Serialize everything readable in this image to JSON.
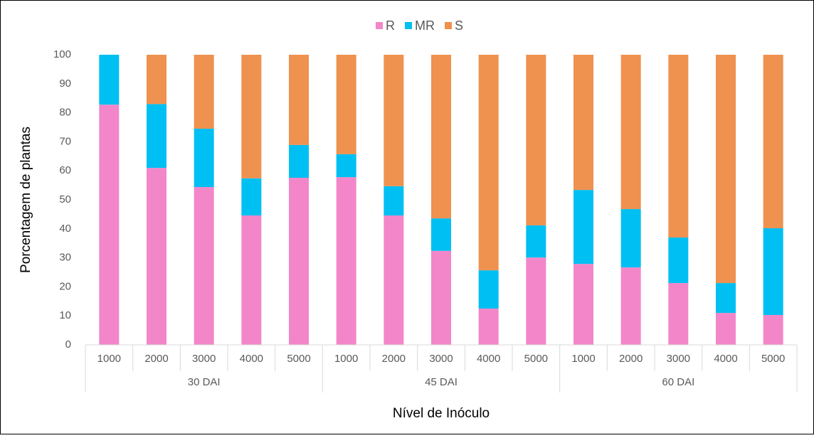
{
  "chart_data": {
    "type": "stacked_bar",
    "x_label": "Nível de Inóculo",
    "y_label": "Porcentagem de plantas",
    "categories": [
      "1000",
      "2000",
      "3000",
      "4000",
      "5000",
      "1000",
      "2000",
      "3000",
      "4000",
      "5000",
      "1000",
      "2000",
      "3000",
      "4000",
      "5000"
    ],
    "groups": [
      "30 DAI",
      "45 DAI",
      "60 DAI"
    ],
    "series": [
      {
        "name": "R",
        "color": "#f386c9",
        "values": [
          82.8,
          61,
          54.4,
          44.6,
          57.6,
          57.8,
          44.6,
          32.4,
          12.5,
          30.1,
          27.9,
          26.7,
          21.3,
          11,
          10.3
        ]
      },
      {
        "name": "MR",
        "color": "#00bff2",
        "values": [
          17.2,
          22,
          20.1,
          12.8,
          11.3,
          7.9,
          10.1,
          11.2,
          13.2,
          11.1,
          25.5,
          20.1,
          15.7,
          10.3,
          29.9
        ]
      },
      {
        "name": "S",
        "color": "#ef914f",
        "values": [
          0,
          17,
          25.5,
          42.6,
          31.1,
          34.3,
          45.3,
          56.4,
          74.3,
          58.8,
          46.6,
          53.2,
          63,
          78.7,
          59.8
        ]
      }
    ],
    "ylim": [
      0,
      100
    ],
    "yticks": [
      0,
      10,
      20,
      30,
      40,
      50,
      60,
      70,
      80,
      90,
      100
    ],
    "grid": false,
    "legend": "top"
  }
}
